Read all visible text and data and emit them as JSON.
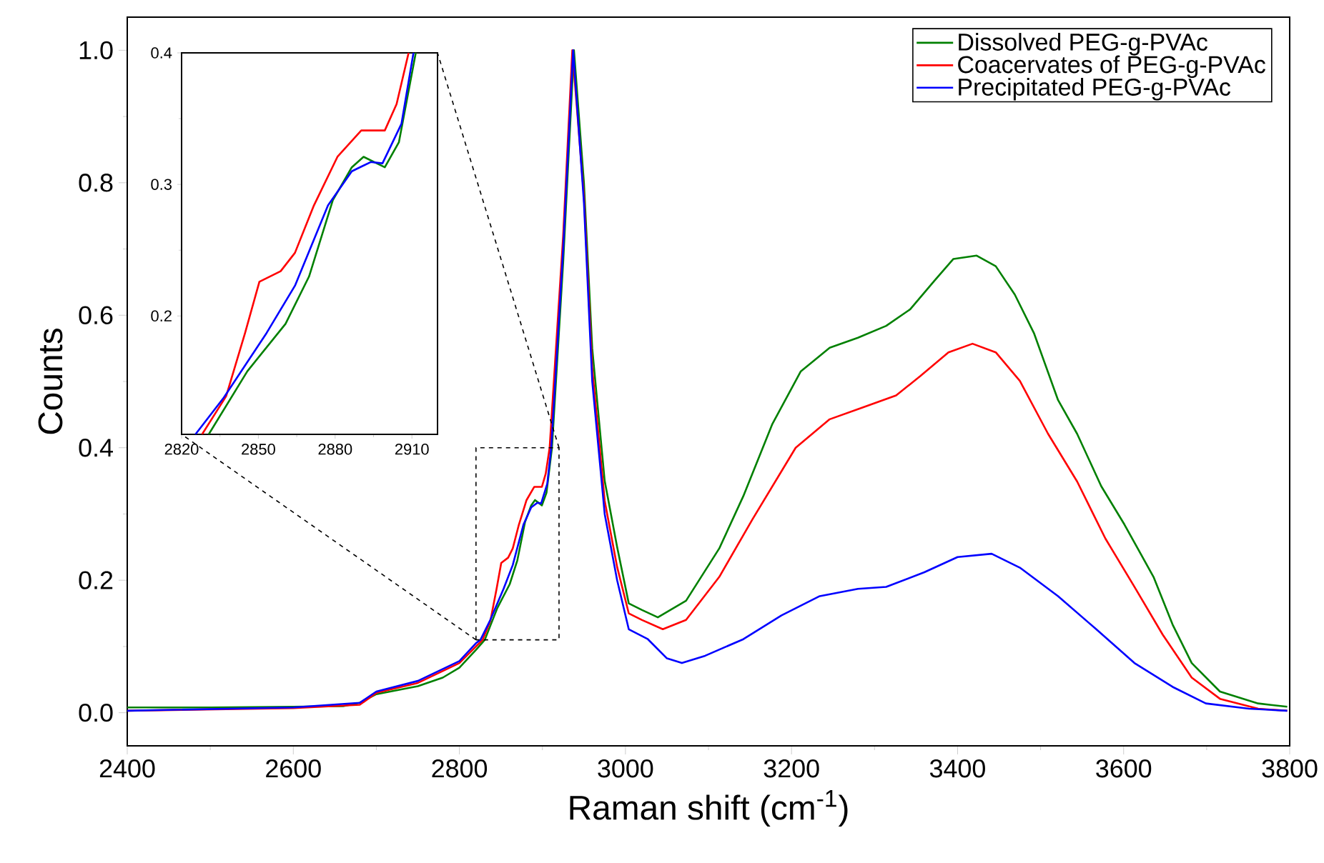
{
  "chart_data": [
    {
      "type": "line",
      "xlabel": "Raman shift (cm$^{-1}$)",
      "ylabel": "Counts",
      "xlim": [
        2400,
        3800
      ],
      "ylim": [
        -0.05,
        1.05
      ],
      "xticks": [
        2400,
        2600,
        2800,
        3000,
        3200,
        3400,
        3600,
        3800
      ],
      "yticks": [
        {
          "value": 0,
          "label": "0.0"
        },
        0.2,
        0.4,
        0.6,
        0.8,
        {
          "value": 1,
          "label": "1.0"
        }
      ],
      "legend": "top right",
      "series": [
        {
          "name": "Dissolved PEG-g-PVAc",
          "color": "#008000",
          "x": [
            2400,
            2500,
            2600,
            2660,
            2680,
            2700,
            2750,
            2780,
            2800,
            2820,
            2830.6,
            2845.7,
            2860.6,
            2869.8,
            2879.1,
            2886.5,
            2891.1,
            2899.4,
            2904.9,
            2911.5,
            2925,
            2938,
            2950,
            2960,
            2975,
            2990,
            3004,
            3020,
            3039,
            3073,
            3113,
            3142,
            3177,
            3211,
            3246,
            3280,
            3314,
            3343,
            3372,
            3395,
            3423,
            3446,
            3469,
            3492,
            3521,
            3544,
            3573,
            3601,
            3636,
            3659,
            3682,
            3716,
            3762,
            3797
          ],
          "values": [
            0.008,
            0.008,
            0.009,
            0.01,
            0.015,
            0.028,
            0.04,
            0.053,
            0.068,
            0.095,
            0.11,
            0.158,
            0.194,
            0.23,
            0.288,
            0.313,
            0.321,
            0.313,
            0.332,
            0.4,
            0.68,
            1.0,
            0.8,
            0.55,
            0.35,
            0.25,
            0.165,
            0.155,
            0.144,
            0.169,
            0.248,
            0.327,
            0.436,
            0.515,
            0.551,
            0.566,
            0.584,
            0.609,
            0.652,
            0.685,
            0.69,
            0.674,
            0.631,
            0.573,
            0.472,
            0.421,
            0.342,
            0.284,
            0.205,
            0.133,
            0.075,
            0.032,
            0.014,
            0.009
          ]
        },
        {
          "name": "Coacervates of PEG-g-PVAc",
          "color": "#ff0000",
          "x": [
            2400,
            2600,
            2680,
            2700,
            2750,
            2800,
            2820,
            2828,
            2837.4,
            2844.8,
            2850.4,
            2858.7,
            2864.3,
            2871.7,
            2880.9,
            2890.2,
            2899.4,
            2904,
            2908.7,
            2925,
            2936,
            2950,
            2960,
            2975,
            2990,
            3004,
            3020,
            3045,
            3073,
            3113,
            3153,
            3205,
            3246,
            3286,
            3326,
            3355,
            3389,
            3418,
            3446,
            3475,
            3509,
            3544,
            3578,
            3613,
            3647,
            3682,
            3716,
            3762,
            3797
          ],
          "values": [
            0.003,
            0.007,
            0.012,
            0.03,
            0.045,
            0.075,
            0.1,
            0.11,
            0.139,
            0.187,
            0.226,
            0.234,
            0.248,
            0.284,
            0.321,
            0.341,
            0.341,
            0.361,
            0.4,
            0.72,
            1.0,
            0.78,
            0.52,
            0.32,
            0.22,
            0.15,
            0.14,
            0.126,
            0.14,
            0.205,
            0.292,
            0.4,
            0.443,
            0.461,
            0.479,
            0.508,
            0.544,
            0.557,
            0.544,
            0.501,
            0.421,
            0.349,
            0.263,
            0.19,
            0.118,
            0.053,
            0.021,
            0.006,
            0.003
          ]
        },
        {
          "name": "Precipitated PEG-g-PVAc",
          "color": "#0000ff",
          "x": [
            2400,
            2600,
            2680,
            2700,
            2750,
            2800,
            2820,
            2825.4,
            2836.5,
            2853.2,
            2864.3,
            2877.2,
            2886.5,
            2893.9,
            2898.5,
            2905.9,
            2910.6,
            2925,
            2937,
            2950,
            2960,
            2975,
            2990,
            3004,
            3027,
            3050,
            3068,
            3096,
            3142,
            3188,
            3234,
            3280,
            3314,
            3360,
            3400,
            3441,
            3475,
            3521,
            3567,
            3613,
            3659,
            3699,
            3751,
            3797
          ],
          "values": [
            0.003,
            0.008,
            0.015,
            0.032,
            0.048,
            0.078,
            0.105,
            0.11,
            0.138,
            0.187,
            0.223,
            0.284,
            0.31,
            0.317,
            0.316,
            0.346,
            0.4,
            0.7,
            1.0,
            0.77,
            0.5,
            0.3,
            0.2,
            0.126,
            0.111,
            0.082,
            0.075,
            0.086,
            0.111,
            0.147,
            0.176,
            0.187,
            0.19,
            0.212,
            0.235,
            0.24,
            0.219,
            0.176,
            0.126,
            0.075,
            0.039,
            0.014,
            0.006,
            0.003
          ]
        }
      ]
    },
    {
      "type": "line",
      "xlim": [
        2820,
        2920
      ],
      "ylim": [
        0.11,
        0.4
      ],
      "xticks": [
        2820,
        2850,
        2880,
        2910
      ],
      "yticks": [
        0.2,
        0.3,
        0.4
      ],
      "series": [
        {
          "color": "#008000",
          "x": [
            2830.6,
            2845.7,
            2860.6,
            2869.8,
            2879.1,
            2886.5,
            2891.1,
            2899.4,
            2904.9,
            2911.5
          ],
          "values": [
            0.11,
            0.158,
            0.194,
            0.23,
            0.288,
            0.313,
            0.321,
            0.313,
            0.332,
            0.4
          ]
        },
        {
          "color": "#ff0000",
          "x": [
            2828,
            2837.4,
            2844.8,
            2850.4,
            2858.7,
            2864.3,
            2871.7,
            2880.9,
            2890.2,
            2899.4,
            2904,
            2908.7
          ],
          "values": [
            0.11,
            0.139,
            0.187,
            0.226,
            0.234,
            0.248,
            0.284,
            0.321,
            0.341,
            0.341,
            0.361,
            0.4
          ]
        },
        {
          "color": "#0000ff",
          "x": [
            2825.4,
            2836.5,
            2853.2,
            2864.3,
            2877.2,
            2886.5,
            2893.9,
            2898.5,
            2905.9,
            2910.6
          ],
          "values": [
            0.11,
            0.138,
            0.187,
            0.223,
            0.284,
            0.31,
            0.317,
            0.316,
            0.346,
            0.4
          ]
        }
      ]
    }
  ]
}
